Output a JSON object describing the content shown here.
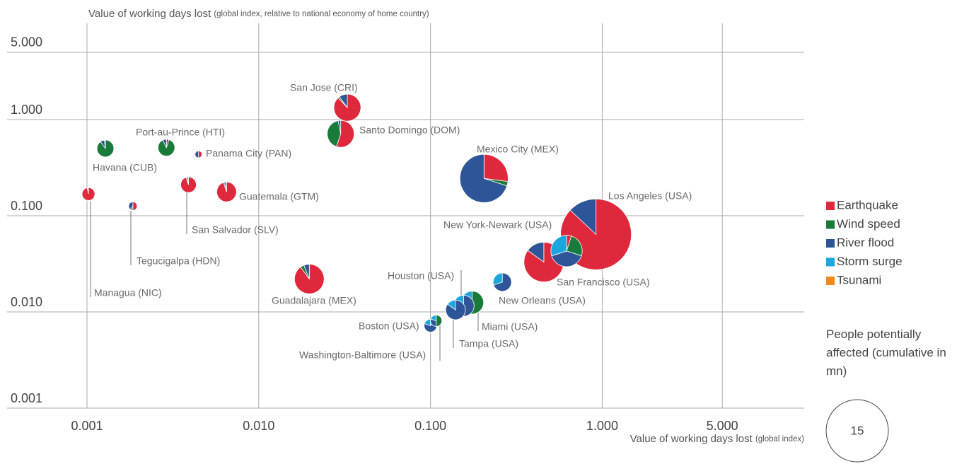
{
  "chart_data": {
    "type": "scatter-pie",
    "title": "Value of working days lost",
    "title_note": "(global index, relative to national economy of home country)",
    "x_label": "Value of working days lost",
    "x_label_note": "(global index)",
    "x_log": true,
    "y_log": true,
    "grid": true,
    "xlim": [
      0.001,
      15
    ],
    "ylim": [
      0.001,
      10
    ],
    "xticks": [
      {
        "value": 0.001,
        "label": "0.001"
      },
      {
        "value": 0.01,
        "label": "0.010"
      },
      {
        "value": 0.1,
        "label": "0.100"
      },
      {
        "value": 1,
        "label": "1.000"
      },
      {
        "value": 5,
        "label": "5.000"
      }
    ],
    "yticks": [
      {
        "value": 0.001,
        "label": "0.001"
      },
      {
        "value": 0.01,
        "label": "0.010"
      },
      {
        "value": 0.1,
        "label": "0.100"
      },
      {
        "value": 1,
        "label": "1.000"
      },
      {
        "value": 5,
        "label": "5.000"
      }
    ],
    "hazards": [
      {
        "name": "Earthquake",
        "color": "#e0283c"
      },
      {
        "name": "Wind speed",
        "color": "#1a7a3a"
      },
      {
        "name": "River flood",
        "color": "#2e5597"
      },
      {
        "name": "Storm surge",
        "color": "#1aa7dc"
      },
      {
        "name": "Tsunami",
        "color": "#f08a1e"
      }
    ],
    "legend_position": "right",
    "size_legend": {
      "title": "People potentially affected (cumulative in mn)",
      "value": 15
    },
    "cities": [
      {
        "name": "Managua (NIC)",
        "x": 0.00102,
        "y": 0.168,
        "size": 0.63,
        "shares": [
          97,
          1,
          2,
          0,
          0
        ]
      },
      {
        "name": "Tegucigalpa (HDN)",
        "x": 0.00185,
        "y": 0.126,
        "size": 0.28,
        "shares": [
          50,
          10,
          40,
          0,
          0
        ]
      },
      {
        "name": "Havana (CUB)",
        "x": 0.00128,
        "y": 0.5,
        "size": 1.1,
        "shares": [
          0,
          90,
          8,
          2,
          0
        ]
      },
      {
        "name": "Port-au-Prince (HTI)",
        "x": 0.0029,
        "y": 0.51,
        "size": 1.1,
        "shares": [
          5,
          88,
          7,
          0,
          0
        ]
      },
      {
        "name": "Panama City (PAN)",
        "x": 0.00446,
        "y": 0.435,
        "size": 0.19,
        "shares": [
          50,
          0,
          50,
          0,
          0
        ]
      },
      {
        "name": "San Salvador (SLV)",
        "x": 0.0039,
        "y": 0.21,
        "size": 0.94,
        "shares": [
          95,
          2,
          3,
          0,
          0
        ]
      },
      {
        "name": "Guatemala (GTM)",
        "x": 0.0065,
        "y": 0.177,
        "size": 1.5,
        "shares": [
          95,
          2,
          3,
          0,
          0
        ]
      },
      {
        "name": "San Jose (CRI)",
        "x": 0.0328,
        "y": 1.33,
        "size": 2.8,
        "shares": [
          88,
          2,
          10,
          0,
          0
        ]
      },
      {
        "name": "Santo Domingo (DOM)",
        "x": 0.03,
        "y": 0.71,
        "size": 2.8,
        "shares": [
          55,
          42,
          3,
          0,
          0
        ]
      },
      {
        "name": "Guadalajara (MEX)",
        "x": 0.0197,
        "y": 0.022,
        "size": 3.4,
        "shares": [
          90,
          4,
          6,
          0,
          0
        ]
      },
      {
        "name": "Mexico City (MEX)",
        "x": 0.205,
        "y": 0.244,
        "size": 9.0,
        "shares": [
          27,
          3,
          70,
          0,
          0
        ]
      },
      {
        "name": "Los Angeles (USA)",
        "x": 0.92,
        "y": 0.064,
        "size": 19.4,
        "shares": [
          87,
          0,
          13,
          0,
          0
        ]
      },
      {
        "name": "New York-Newark (USA)",
        "x": 0.62,
        "y": 0.043,
        "size": 3.8,
        "shares": [
          5,
          25,
          40,
          30,
          0
        ]
      },
      {
        "name": "San Francisco (USA)",
        "x": 0.457,
        "y": 0.033,
        "size": 6.1,
        "shares": [
          85,
          0,
          15,
          0,
          0
        ]
      },
      {
        "name": "New Orleans (USA)",
        "x": 0.262,
        "y": 0.0204,
        "size": 1.3,
        "shares": [
          0,
          0,
          70,
          30,
          0
        ]
      },
      {
        "name": "Houston (USA)",
        "x": 0.156,
        "y": 0.0116,
        "size": 1.7,
        "shares": [
          0,
          0,
          80,
          20,
          0
        ]
      },
      {
        "name": "Miami (USA)",
        "x": 0.175,
        "y": 0.0125,
        "size": 2.0,
        "shares": [
          0,
          60,
          25,
          15,
          0
        ]
      },
      {
        "name": "Tampa (USA)",
        "x": 0.14,
        "y": 0.0105,
        "size": 1.5,
        "shares": [
          0,
          0,
          85,
          15,
          0
        ]
      },
      {
        "name": "Boston (USA)",
        "x": 0.1,
        "y": 0.0072,
        "size": 0.63,
        "shares": [
          0,
          10,
          70,
          20,
          0
        ]
      },
      {
        "name": "Washington-Baltimore (USA)",
        "x": 0.108,
        "y": 0.0081,
        "size": 0.5,
        "shares": [
          0,
          50,
          30,
          20,
          0
        ]
      }
    ]
  }
}
